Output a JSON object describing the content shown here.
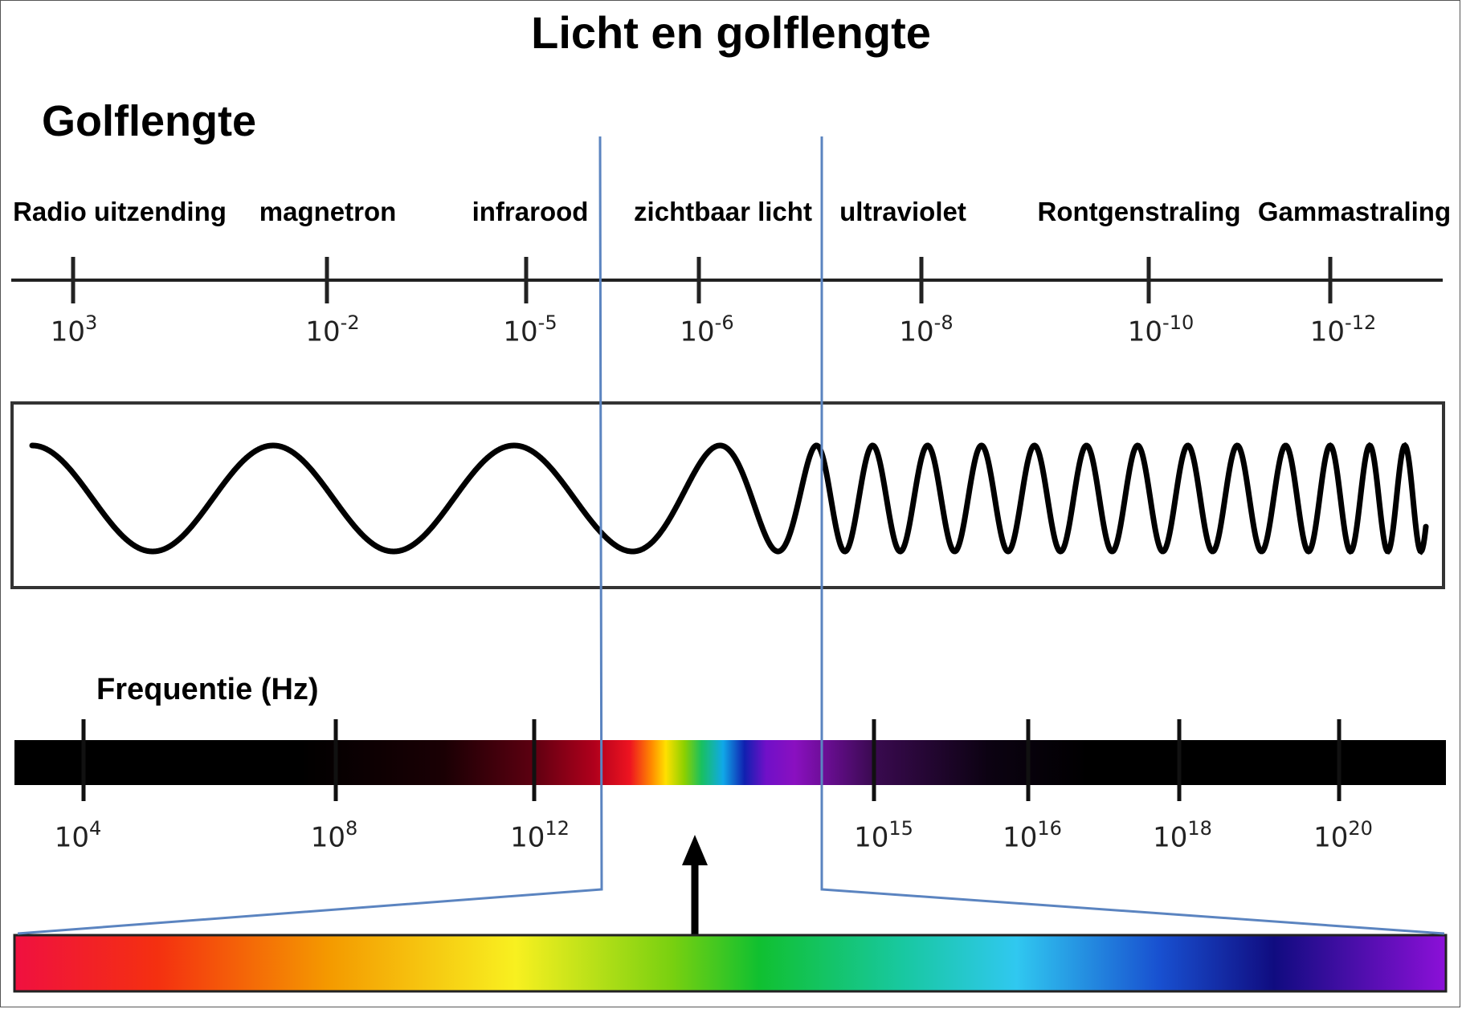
{
  "title": "Licht en golflengte",
  "wavelength_heading": "Golflengte",
  "frequency_heading": "Frequentie (Hz)",
  "bands": [
    {
      "label": "Radio uitzending"
    },
    {
      "label": "magnetron"
    },
    {
      "label": "infrarood"
    },
    {
      "label": "zichtbaar licht"
    },
    {
      "label": "ultraviolet"
    },
    {
      "label": "Rontgenstraling"
    },
    {
      "label": "Gammastraling"
    }
  ],
  "wavelength_ticks": [
    {
      "base": "10",
      "exp": "3"
    },
    {
      "base": "10",
      "exp": "-2"
    },
    {
      "base": "10",
      "exp": "-5"
    },
    {
      "base": "10",
      "exp": "-6"
    },
    {
      "base": "10",
      "exp": "-8"
    },
    {
      "base": "10",
      "exp": "-10"
    },
    {
      "base": "10",
      "exp": "-12"
    }
  ],
  "frequency_ticks": [
    {
      "base": "10",
      "exp": "4"
    },
    {
      "base": "10",
      "exp": "8"
    },
    {
      "base": "10",
      "exp": "12"
    },
    {
      "base": "10",
      "exp": "15"
    },
    {
      "base": "10",
      "exp": "16"
    },
    {
      "base": "10",
      "exp": "18"
    },
    {
      "base": "10",
      "exp": "20"
    }
  ],
  "colors": {
    "zoom_lines": "#5b84c0",
    "axis": "#222222"
  }
}
